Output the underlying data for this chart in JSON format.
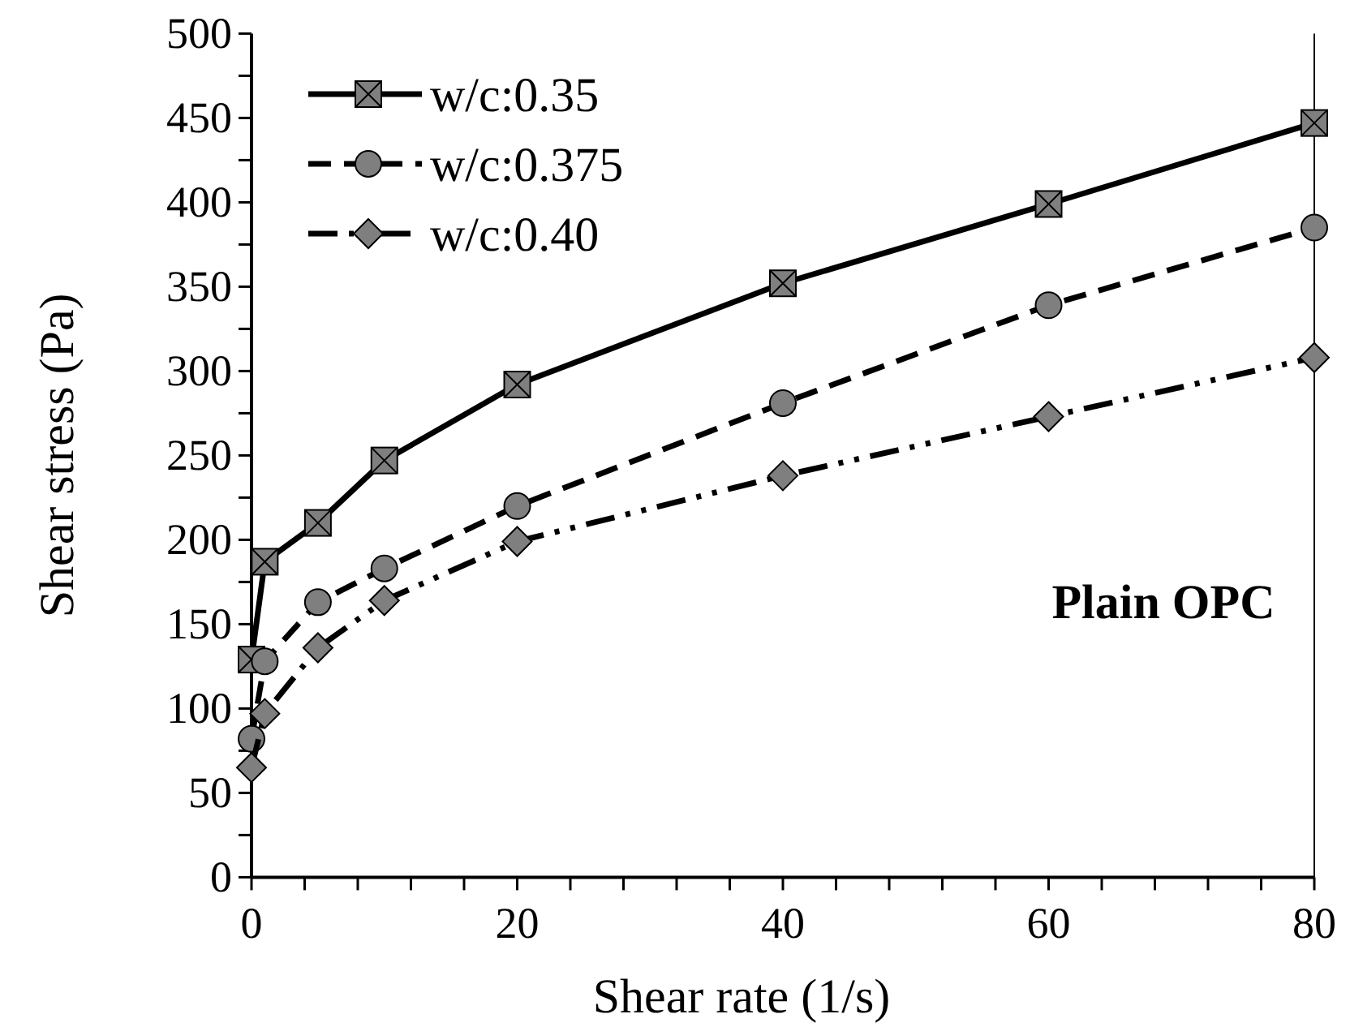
{
  "chart_data": {
    "type": "line",
    "xlabel": "Shear rate (1/s)",
    "ylabel": "Shear stress (Pa)",
    "x": [
      0,
      1,
      5,
      10,
      20,
      40,
      60,
      80
    ],
    "series": [
      {
        "name": "w/c:0.35",
        "color": "#7f7f7f",
        "marker": "square",
        "line_style": "solid",
        "values": [
          129,
          187,
          210,
          247,
          292,
          352,
          399,
          447
        ]
      },
      {
        "name": "w/c:0.375",
        "color": "#7f7f7f",
        "marker": "circle",
        "line_style": "dashed",
        "values": [
          82,
          128,
          163,
          183,
          220,
          281,
          339,
          385
        ]
      },
      {
        "name": "w/c:0.40",
        "color": "#7f7f7f",
        "marker": "diamond",
        "line_style": "dotted",
        "values": [
          65,
          97,
          136,
          164,
          199,
          238,
          273,
          308
        ]
      }
    ],
    "xlim": [
      0,
      80
    ],
    "xticks": [
      0,
      {
        "value": 4,
        "label": null
      },
      {
        "value": 8,
        "label": null
      },
      {
        "value": 12,
        "label": null
      },
      {
        "value": 16,
        "label": null
      },
      20,
      {
        "value": 24,
        "label": null
      },
      {
        "value": 28,
        "label": null
      },
      {
        "value": 32,
        "label": null
      },
      {
        "value": 36,
        "label": null
      },
      40,
      {
        "value": 44,
        "label": null
      },
      {
        "value": 48,
        "label": null
      },
      {
        "value": 52,
        "label": null
      },
      {
        "value": 56,
        "label": null
      },
      60,
      {
        "value": 64,
        "label": null
      },
      {
        "value": 68,
        "label": null
      },
      {
        "value": 72,
        "label": null
      },
      {
        "value": 76,
        "label": null
      },
      80
    ],
    "ylim": [
      0,
      500
    ],
    "yticks": [
      0,
      {
        "value": 25,
        "label": null
      },
      50,
      {
        "value": 75,
        "label": null
      },
      100,
      {
        "value": 125,
        "label": null
      },
      150,
      {
        "value": 175,
        "label": null
      },
      200,
      {
        "value": 225,
        "label": null
      },
      250,
      {
        "value": 275,
        "label": null
      },
      300,
      {
        "value": 325,
        "label": null
      },
      350,
      {
        "value": 375,
        "label": null
      },
      400,
      {
        "value": 425,
        "label": null
      },
      450,
      {
        "value": 475,
        "label": null
      },
      500
    ],
    "grid": false,
    "legend": "top left",
    "annotations": [
      "Plain OPC"
    ]
  }
}
